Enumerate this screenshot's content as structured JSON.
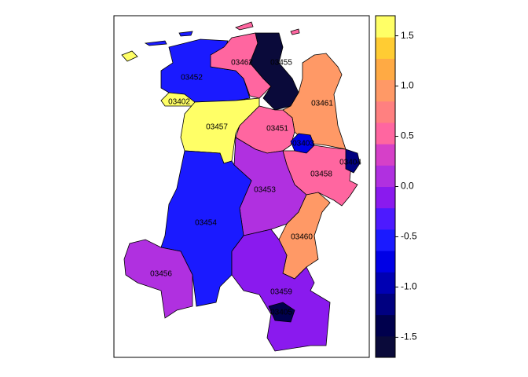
{
  "chart_data": {
    "type": "choropleth",
    "regions": [
      {
        "name": "03452",
        "value": -0.6
      },
      {
        "name": "03402",
        "value": 1.6
      },
      {
        "name": "03462",
        "value": 0.45
      },
      {
        "name": "03455",
        "value": -1.6
      },
      {
        "name": "03457",
        "value": 1.6
      },
      {
        "name": "03461",
        "value": 0.9
      },
      {
        "name": "03451",
        "value": 0.45
      },
      {
        "name": "03403",
        "value": -0.8
      },
      {
        "name": "03458",
        "value": 0.45
      },
      {
        "name": "03404",
        "value": -1.1
      },
      {
        "name": "03453",
        "value": 0.1
      },
      {
        "name": "03454",
        "value": -0.6
      },
      {
        "name": "03460",
        "value": 0.9
      },
      {
        "name": "03456",
        "value": 0.1
      },
      {
        "name": "03459",
        "value": -0.2
      },
      {
        "name": "03405",
        "value": -1.3
      }
    ],
    "colorbar": {
      "lim": [
        -1.7,
        1.7
      ],
      "ticks": [
        -1.5,
        -1.0,
        -0.5,
        0.0,
        0.5,
        1.0,
        1.5
      ],
      "tick_labels": [
        "-1.5",
        "-1.0",
        "-0.5",
        "0.0",
        "0.5",
        "1.0",
        "1.5"
      ],
      "colors": [
        "#0a0a3a",
        "#00004d",
        "#000080",
        "#0000b3",
        "#0000e6",
        "#1a1aff",
        "#4d1aff",
        "#8a1aee",
        "#b030e0",
        "#d640c8",
        "#ff66a0",
        "#ff8080",
        "#ff9966",
        "#ffaa44",
        "#ffcc33",
        "#ffff66"
      ]
    }
  }
}
